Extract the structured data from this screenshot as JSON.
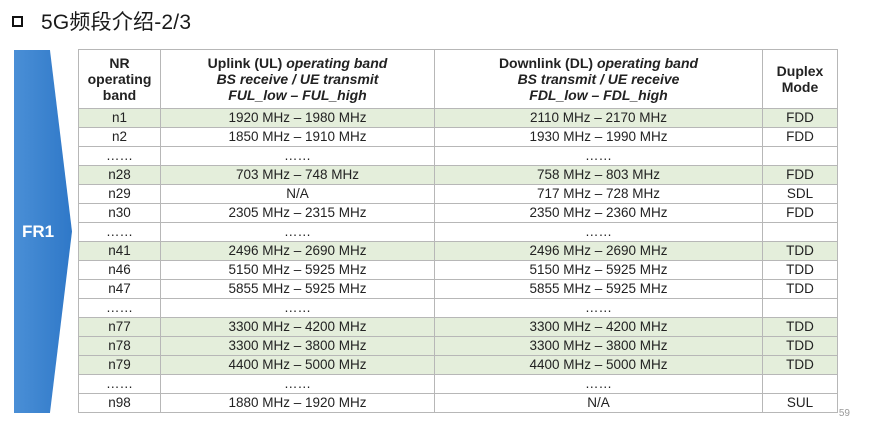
{
  "slide": {
    "title": "5G频段介绍-2/3",
    "side_label": "FR1",
    "page_number": "59"
  },
  "table": {
    "headers": {
      "band": [
        "NR",
        "operating",
        "band"
      ],
      "uplink": [
        "Uplink (UL) ",
        "operating band",
        "BS receive / UE transmit",
        "FUL_low   –   FUL_high"
      ],
      "downlink": [
        "Downlink (DL) ",
        "operating band",
        "BS transmit / UE receive",
        "FDL_low   –   FDL_high"
      ],
      "duplex": [
        "Duplex",
        "Mode"
      ]
    },
    "rows": [
      {
        "band": "n1",
        "ul": "1920 MHz – 1980 MHz",
        "dl": "2110 MHz – 2170 MHz",
        "mode": "FDD",
        "shade": true
      },
      {
        "band": "n2",
        "ul": "1850 MHz – 1910 MHz",
        "dl": "1930 MHz – 1990 MHz",
        "mode": "FDD",
        "shade": false
      },
      {
        "band": "……",
        "ul": "……",
        "dl": "……",
        "mode": "",
        "shade": false
      },
      {
        "band": "n28",
        "ul": "703 MHz – 748 MHz",
        "dl": "758 MHz – 803 MHz",
        "mode": "FDD",
        "shade": true
      },
      {
        "band": "n29",
        "ul": "N/A",
        "dl": "717 MHz – 728 MHz",
        "mode": "SDL",
        "shade": false
      },
      {
        "band": "n30",
        "ul": "2305 MHz – 2315 MHz",
        "dl": "2350 MHz – 2360 MHz",
        "mode": "FDD",
        "shade": false
      },
      {
        "band": "……",
        "ul": "……",
        "dl": "……",
        "mode": "",
        "shade": false
      },
      {
        "band": "n41",
        "ul": "2496 MHz – 2690 MHz",
        "dl": "2496 MHz – 2690 MHz",
        "mode": "TDD",
        "shade": true
      },
      {
        "band": "n46",
        "ul": "5150 MHz – 5925 MHz",
        "dl": "5150 MHz – 5925 MHz",
        "mode": "TDD",
        "shade": false
      },
      {
        "band": "n47",
        "ul": "5855 MHz – 5925 MHz",
        "dl": "5855 MHz – 5925 MHz",
        "mode": "TDD",
        "shade": false
      },
      {
        "band": "……",
        "ul": "……",
        "dl": "……",
        "mode": "",
        "shade": false
      },
      {
        "band": "n77",
        "ul": "3300 MHz – 4200 MHz",
        "dl": "3300 MHz – 4200 MHz",
        "mode": "TDD",
        "shade": true
      },
      {
        "band": "n78",
        "ul": "3300 MHz – 3800 MHz",
        "dl": "3300 MHz – 3800 MHz",
        "mode": "TDD",
        "shade": true
      },
      {
        "band": "n79",
        "ul": "4400 MHz – 5000 MHz",
        "dl": "4400 MHz – 5000 MHz",
        "mode": "TDD",
        "shade": true
      },
      {
        "band": "……",
        "ul": "……",
        "dl": "……",
        "mode": "",
        "shade": false
      },
      {
        "band": "n98",
        "ul": "1880 MHz – 1920 MHz",
        "dl": "N/A",
        "mode": "SUL",
        "shade": false
      }
    ]
  },
  "colors": {
    "accent_arrow": "#2f78c8",
    "shaded_row": "#e4eedb"
  }
}
